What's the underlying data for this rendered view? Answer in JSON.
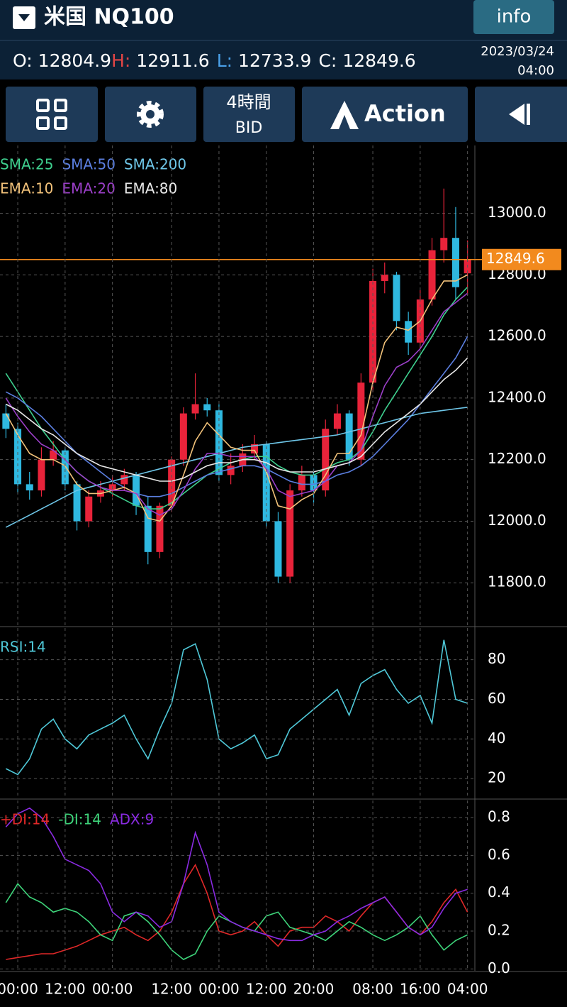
{
  "header": {
    "title": "米国 NQ100",
    "info": "info",
    "o_label": "O:",
    "open": 12804.9,
    "h_label": "H:",
    "high": 12911.6,
    "l_label": "L:",
    "low": 12733.9,
    "c_label": "C:",
    "close": 12849.6,
    "date": "2023/03/24",
    "time": "04:00"
  },
  "toolbar": {
    "timeframe": "4時間",
    "price_type": "BID",
    "action": "Action"
  },
  "chart_data": [
    {
      "type": "candlestick",
      "open": [
        12350,
        12300,
        12120,
        12100,
        12200,
        12230,
        12120,
        12000,
        12080,
        12100,
        12120,
        12150,
        12050,
        11900,
        12050,
        12200,
        12350,
        12380,
        12360,
        12150,
        12180,
        12220,
        12250,
        12000,
        11820,
        12100,
        12150,
        12100,
        12300,
        12350,
        12200,
        12450,
        12780,
        12800,
        12650,
        12580,
        12720,
        12880,
        12920,
        12804.9
      ],
      "high": [
        12380,
        12320,
        12160,
        12240,
        12260,
        12240,
        12130,
        12100,
        12130,
        12150,
        12170,
        12160,
        12080,
        12060,
        12210,
        12370,
        12480,
        12400,
        12380,
        12220,
        12250,
        12280,
        12260,
        12030,
        12120,
        12180,
        12170,
        12330,
        12380,
        12360,
        12480,
        12820,
        12840,
        12810,
        12680,
        12750,
        12920,
        13080,
        13020,
        12911.6
      ],
      "low": [
        12270,
        12090,
        12070,
        12080,
        12180,
        12100,
        11970,
        11980,
        12060,
        12080,
        12100,
        12020,
        11860,
        11880,
        12030,
        12180,
        12330,
        12340,
        12130,
        12120,
        12160,
        12200,
        11980,
        11800,
        11800,
        12080,
        12060,
        12080,
        12280,
        12180,
        12180,
        12420,
        12740,
        12620,
        12540,
        12560,
        12700,
        12840,
        12720,
        12733.9
      ],
      "close": [
        12300,
        12120,
        12100,
        12200,
        12230,
        12120,
        12000,
        12080,
        12100,
        12120,
        12150,
        12050,
        11900,
        12050,
        12200,
        12350,
        12380,
        12360,
        12150,
        12180,
        12220,
        12250,
        12000,
        11820,
        12100,
        12150,
        12100,
        12300,
        12350,
        12200,
        12450,
        12780,
        12800,
        12650,
        12580,
        12720,
        12880,
        12920,
        12760,
        12849.6
      ],
      "up_color": "#e8233a",
      "down_color": "#2fb8e0",
      "series": [
        {
          "name": "SMA:25",
          "color": "#3ecf8e",
          "values": [
            12480,
            12420,
            12360,
            12300,
            12250,
            12200,
            12160,
            12130,
            12110,
            12090,
            12070,
            12050,
            12040,
            12040,
            12060,
            12090,
            12120,
            12150,
            12170,
            12190,
            12200,
            12210,
            12210,
            12180,
            12160,
            12150,
            12150,
            12170,
            12190,
            12200,
            12230,
            12290,
            12360,
            12420,
            12480,
            12540,
            12600,
            12670,
            12720,
            12760
          ]
        },
        {
          "name": "SMA:50",
          "color": "#5b7fe0",
          "values": [
            12420,
            12400,
            12370,
            12340,
            12300,
            12260,
            12220,
            12190,
            12160,
            12130,
            12110,
            12090,
            12080,
            12080,
            12090,
            12110,
            12130,
            12150,
            12160,
            12170,
            12180,
            12180,
            12170,
            12150,
            12130,
            12120,
            12120,
            12130,
            12150,
            12160,
            12180,
            12210,
            12250,
            12290,
            12330,
            12380,
            12430,
            12480,
            12530,
            12600
          ]
        },
        {
          "name": "SMA:200",
          "color": "#6ec6e8",
          "values": [
            11980,
            12000,
            12020,
            12040,
            12060,
            12080,
            12100,
            12110,
            12120,
            12130,
            12140,
            12150,
            12160,
            12170,
            12180,
            12190,
            12200,
            12210,
            12220,
            12230,
            12240,
            12245,
            12250,
            12255,
            12260,
            12265,
            12270,
            12275,
            12280,
            12290,
            12300,
            12310,
            12320,
            12330,
            12340,
            12350,
            12355,
            12360,
            12365,
            12370
          ]
        },
        {
          "name": "EMA:10",
          "color": "#f2c27a",
          "values": [
            12350,
            12280,
            12220,
            12200,
            12200,
            12180,
            12120,
            12090,
            12090,
            12100,
            12110,
            12090,
            12010,
            12000,
            12050,
            12150,
            12260,
            12320,
            12280,
            12240,
            12230,
            12230,
            12160,
            12050,
            12040,
            12070,
            12090,
            12150,
            12220,
            12220,
            12280,
            12450,
            12580,
            12630,
            12620,
            12650,
            12720,
            12780,
            12780,
            12800
          ]
        },
        {
          "name": "EMA:20",
          "color": "#9b3fc8",
          "values": [
            12400,
            12340,
            12290,
            12250,
            12230,
            12200,
            12160,
            12130,
            12110,
            12100,
            12100,
            12090,
            12040,
            12020,
            12040,
            12100,
            12170,
            12220,
            12220,
            12210,
            12210,
            12210,
            12170,
            12100,
            12080,
            12090,
            12100,
            12130,
            12180,
            12190,
            12230,
            12340,
            12440,
            12500,
            12520,
            12560,
            12620,
            12680,
            12710,
            12740
          ]
        },
        {
          "name": "EMA:80",
          "color": "#e8e8e8",
          "values": [
            12380,
            12360,
            12330,
            12300,
            12280,
            12250,
            12220,
            12200,
            12180,
            12170,
            12160,
            12150,
            12140,
            12130,
            12130,
            12140,
            12160,
            12180,
            12190,
            12190,
            12200,
            12200,
            12190,
            12170,
            12160,
            12160,
            12160,
            12170,
            12180,
            12190,
            12210,
            12250,
            12290,
            12320,
            12350,
            12380,
            12420,
            12460,
            12490,
            12530
          ]
        }
      ],
      "current_price": 12849.6,
      "current_price_color": "#f28a1e",
      "ylim": [
        11660,
        13220
      ],
      "yticks": [
        {
          "value": 11800,
          "label": "11800.0"
        },
        {
          "value": 12000,
          "label": "12000.0"
        },
        {
          "value": 12200,
          "label": "12200.0"
        },
        {
          "value": 12400,
          "label": "12400.0"
        },
        {
          "value": 12600,
          "label": "12600.0"
        },
        {
          "value": 12800,
          "label": "12800.0"
        },
        {
          "value": 13000,
          "label": "13000.0"
        }
      ],
      "grid": true
    },
    {
      "type": "line",
      "series": [
        {
          "name": "RSI:14",
          "color": "#4fc8d8",
          "values": [
            25,
            22,
            30,
            45,
            50,
            40,
            35,
            42,
            45,
            48,
            52,
            40,
            30,
            45,
            58,
            85,
            88,
            70,
            40,
            35,
            38,
            42,
            30,
            32,
            45,
            50,
            55,
            60,
            65,
            52,
            68,
            72,
            75,
            65,
            58,
            62,
            48,
            90,
            60,
            58
          ]
        }
      ],
      "ylim": [
        10,
        96
      ],
      "yticks": [
        20,
        40,
        60,
        80
      ],
      "grid": true
    },
    {
      "type": "line",
      "categories": [
        null,
        "00:00",
        null,
        null,
        null,
        "12:00",
        null,
        null,
        null,
        "00:00",
        null,
        null,
        null,
        null,
        "12:00",
        null,
        null,
        null,
        "00:00",
        null,
        null,
        null,
        "12:00",
        null,
        null,
        null,
        "20:00",
        null,
        null,
        null,
        null,
        "08:00",
        null,
        null,
        null,
        "16:00",
        null,
        null,
        null,
        "04:00"
      ],
      "series": [
        {
          "name": "+DI:14",
          "color": "#e02828",
          "values": [
            0.05,
            0.06,
            0.07,
            0.08,
            0.08,
            0.1,
            0.12,
            0.15,
            0.18,
            0.2,
            0.22,
            0.18,
            0.15,
            0.2,
            0.3,
            0.45,
            0.55,
            0.4,
            0.2,
            0.18,
            0.2,
            0.25,
            0.18,
            0.12,
            0.2,
            0.22,
            0.22,
            0.28,
            0.25,
            0.2,
            0.28,
            0.35,
            0.38,
            0.3,
            0.22,
            0.18,
            0.25,
            0.35,
            0.42,
            0.3
          ]
        },
        {
          "name": "-DI:14",
          "color": "#3ed47a",
          "values": [
            0.35,
            0.45,
            0.38,
            0.35,
            0.3,
            0.32,
            0.3,
            0.25,
            0.18,
            0.15,
            0.28,
            0.3,
            0.25,
            0.18,
            0.1,
            0.05,
            0.08,
            0.2,
            0.28,
            0.25,
            0.22,
            0.2,
            0.28,
            0.3,
            0.22,
            0.2,
            0.18,
            0.15,
            0.2,
            0.25,
            0.22,
            0.18,
            0.15,
            0.18,
            0.22,
            0.28,
            0.18,
            0.1,
            0.15,
            0.18
          ]
        },
        {
          "name": "ADX:9",
          "color": "#8a2be2",
          "values": [
            0.75,
            0.82,
            0.85,
            0.8,
            0.7,
            0.58,
            0.55,
            0.52,
            0.45,
            0.3,
            0.25,
            0.3,
            0.28,
            0.22,
            0.25,
            0.45,
            0.72,
            0.55,
            0.3,
            0.25,
            0.22,
            0.2,
            0.18,
            0.16,
            0.15,
            0.15,
            0.18,
            0.2,
            0.25,
            0.28,
            0.32,
            0.35,
            0.38,
            0.3,
            0.22,
            0.18,
            0.22,
            0.32,
            0.4,
            0.42
          ]
        }
      ],
      "ylim": [
        -0.01,
        0.89
      ],
      "yticks": [
        {
          "value": 0,
          "label": "0.0"
        },
        0.2,
        0.4,
        0.6,
        0.8
      ],
      "grid": true
    }
  ]
}
